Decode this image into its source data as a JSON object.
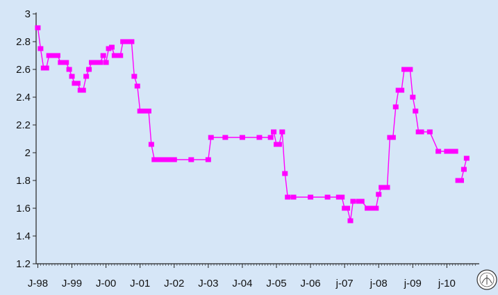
{
  "chart_data": {
    "type": "line",
    "title": "",
    "xlabel": "",
    "ylabel": "",
    "ylim": [
      1.2,
      3.0
    ],
    "yticks": [
      "1.2",
      "1.4",
      "1.6",
      "1.8",
      "2",
      "2.2",
      "2.4",
      "2.6",
      "2.8",
      "3"
    ],
    "ytick_values": [
      1.2,
      1.4,
      1.6,
      1.8,
      2.0,
      2.2,
      2.4,
      2.6,
      2.8,
      3.0
    ],
    "xticks": [
      "J-98",
      "J-99",
      "J-00",
      "J-01",
      "J-02",
      "J-03",
      "J-04",
      "J-05",
      "J-06",
      "j-07",
      "j-08",
      "j-09",
      "j-10"
    ],
    "grid": false,
    "legend": "none",
    "series_color": "#ff00ff",
    "background_color": "#d6e6f7",
    "x": [
      1998.0,
      1998.08,
      1998.17,
      1998.25,
      1998.33,
      1998.42,
      1998.5,
      1998.58,
      1998.67,
      1998.75,
      1998.83,
      1998.92,
      1999.0,
      1999.08,
      1999.17,
      1999.25,
      1999.33,
      1999.42,
      1999.5,
      1999.58,
      1999.67,
      1999.75,
      1999.83,
      1999.92,
      2000.0,
      2000.08,
      2000.17,
      2000.25,
      2000.33,
      2000.42,
      2000.5,
      2000.58,
      2000.67,
      2000.75,
      2000.83,
      2000.92,
      2001.0,
      2001.08,
      2001.17,
      2001.25,
      2001.33,
      2001.42,
      2001.5,
      2001.58,
      2001.67,
      2001.75,
      2001.83,
      2001.92,
      2002.0,
      2002.5,
      2003.0,
      2003.08,
      2003.5,
      2004.0,
      2004.5,
      2004.83,
      2004.92,
      2005.0,
      2005.08,
      2005.17,
      2005.25,
      2005.33,
      2005.5,
      2006.0,
      2006.5,
      2006.83,
      2006.92,
      2007.0,
      2007.08,
      2007.17,
      2007.25,
      2007.42,
      2007.5,
      2007.67,
      2007.75,
      2007.83,
      2007.92,
      2008.0,
      2008.08,
      2008.17,
      2008.25,
      2008.33,
      2008.42,
      2008.5,
      2008.58,
      2008.67,
      2008.75,
      2008.83,
      2008.92,
      2009.0,
      2009.08,
      2009.17,
      2009.25,
      2009.5,
      2009.75,
      2010.0,
      2010.08,
      2010.17,
      2010.25
    ],
    "series": [
      {
        "values": [
          2.9,
          2.75,
          2.61,
          2.61,
          2.7,
          2.7,
          2.7,
          2.7,
          2.65,
          2.65,
          2.65,
          2.6,
          2.55,
          2.5,
          2.5,
          2.45,
          2.45,
          2.55,
          2.6,
          2.65,
          2.65,
          2.65,
          2.65,
          2.7,
          2.65,
          2.75,
          2.76,
          2.7,
          2.7,
          2.7,
          2.8,
          2.8,
          2.8,
          2.8,
          2.55,
          2.48,
          2.3,
          2.3,
          2.3,
          2.3,
          2.06,
          1.95,
          1.95,
          1.95,
          1.95,
          1.95,
          1.95,
          1.95,
          1.95,
          1.95,
          1.95,
          2.11,
          2.11,
          2.11,
          2.11,
          2.11,
          2.15,
          2.06,
          2.06,
          2.15,
          1.85,
          1.68,
          1.68,
          1.68,
          1.68,
          1.68,
          1.68,
          1.6,
          1.6,
          1.51,
          1.65,
          1.65,
          1.65,
          1.6,
          1.6,
          1.6,
          1.6,
          1.7,
          1.75,
          1.75,
          1.75,
          2.11,
          2.11,
          2.33,
          2.45,
          2.45,
          2.6,
          2.6,
          2.6,
          2.4,
          2.3,
          2.15,
          2.15,
          2.15,
          2.01,
          2.01,
          2.01,
          2.01,
          2.01
        ]
      }
    ],
    "tail_x": [
      2010.33,
      2010.42,
      2010.5,
      2010.58
    ],
    "tail_values": [
      1.8,
      1.8,
      1.88,
      1.96
    ]
  }
}
